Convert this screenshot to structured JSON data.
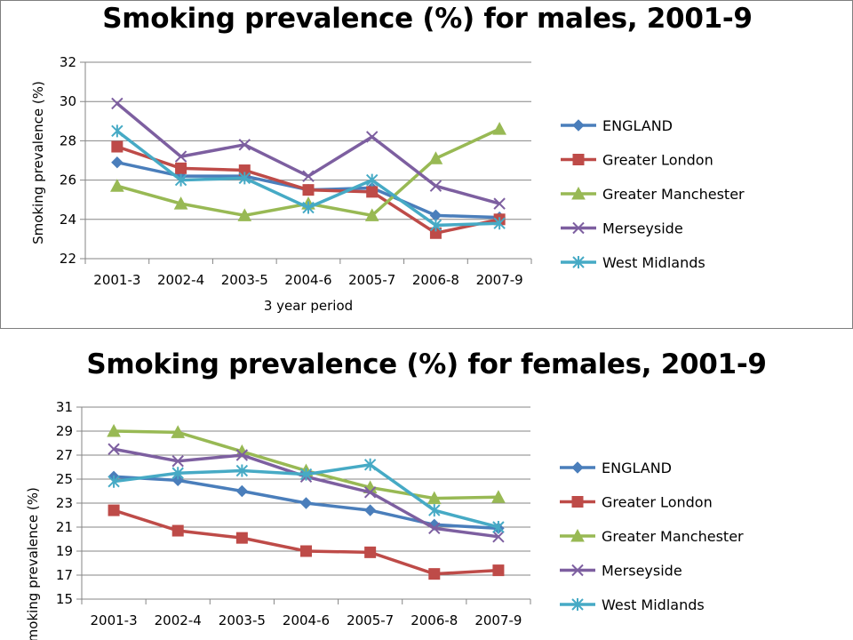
{
  "chart_data": [
    {
      "type": "line",
      "title": "Smoking prevalence (%) for males, 2001-9",
      "xlabel": "3 year period",
      "ylabel": "Smoking prevalence (%)",
      "ylim": [
        22,
        32
      ],
      "yticks": [
        22,
        24,
        26,
        28,
        30,
        32
      ],
      "grid": true,
      "legend": "right",
      "categories": [
        "2001-3",
        "2002-4",
        "2003-5",
        "2004-6",
        "2005-7",
        "2006-8",
        "2007-9"
      ],
      "series": [
        {
          "name": "ENGLAND",
          "color": "#4a7ebb",
          "marker": "diamond",
          "values": [
            26.9,
            26.2,
            26.2,
            25.5,
            25.6,
            24.2,
            24.1
          ]
        },
        {
          "name": "Greater London",
          "color": "#be4b48",
          "marker": "square",
          "values": [
            27.7,
            26.6,
            26.5,
            25.5,
            25.4,
            23.3,
            24.0
          ]
        },
        {
          "name": "Greater Manchester",
          "color": "#98b954",
          "marker": "triangle",
          "values": [
            25.7,
            24.8,
            24.2,
            24.8,
            24.2,
            27.1,
            28.6
          ]
        },
        {
          "name": "Merseyside",
          "color": "#7d5fa0",
          "marker": "x",
          "values": [
            29.9,
            27.2,
            27.8,
            26.2,
            28.2,
            25.7,
            24.8
          ]
        },
        {
          "name": "West Midlands",
          "color": "#46aac5",
          "marker": "star",
          "values": [
            28.5,
            26.0,
            26.1,
            24.6,
            26.0,
            23.7,
            23.8
          ]
        }
      ]
    },
    {
      "type": "line",
      "title": "Smoking prevalence (%) for females, 2001-9",
      "xlabel": "",
      "ylabel": "Smoking prevalence (%)",
      "ylim": [
        15,
        31
      ],
      "yticks": [
        15,
        17,
        19,
        21,
        23,
        25,
        27,
        29,
        31
      ],
      "grid": true,
      "legend": "right",
      "categories": [
        "2001-3",
        "2002-4",
        "2003-5",
        "2004-6",
        "2005-7",
        "2006-8",
        "2007-9"
      ],
      "series": [
        {
          "name": "ENGLAND",
          "color": "#4a7ebb",
          "marker": "diamond",
          "values": [
            25.2,
            24.9,
            24.0,
            23.0,
            22.4,
            21.2,
            20.9
          ]
        },
        {
          "name": "Greater London",
          "color": "#be4b48",
          "marker": "square",
          "values": [
            22.4,
            20.7,
            20.1,
            19.0,
            18.9,
            17.1,
            17.4
          ]
        },
        {
          "name": "Greater Manchester",
          "color": "#98b954",
          "marker": "triangle",
          "values": [
            29.0,
            28.9,
            27.3,
            25.7,
            24.3,
            23.4,
            23.5
          ]
        },
        {
          "name": "Merseyside",
          "color": "#7d5fa0",
          "marker": "x",
          "values": [
            27.5,
            26.5,
            27.0,
            25.2,
            23.9,
            20.9,
            20.2
          ]
        },
        {
          "name": "West Midlands",
          "color": "#46aac5",
          "marker": "star",
          "values": [
            24.8,
            25.5,
            25.7,
            25.4,
            26.2,
            22.4,
            21.0
          ]
        }
      ]
    }
  ]
}
